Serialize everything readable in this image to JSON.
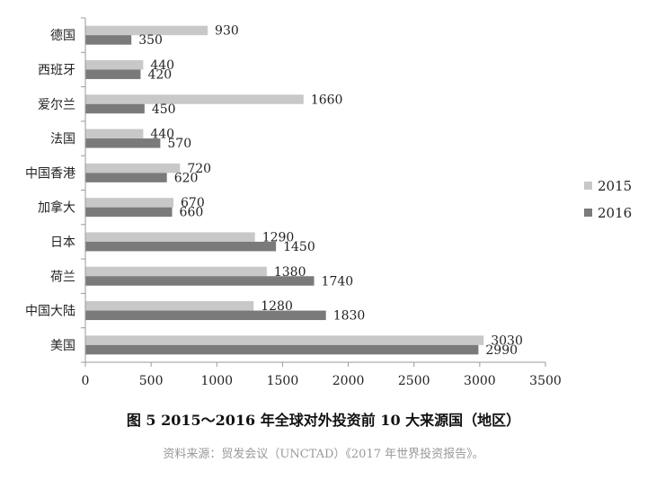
{
  "chart_data": {
    "type": "bar",
    "orientation": "horizontal",
    "categories": [
      "德国",
      "西班牙",
      "爱尔兰",
      "法国",
      "中国香港",
      "加拿大",
      "日本",
      "荷兰",
      "中国大陆",
      "美国"
    ],
    "series": [
      {
        "name": "2015",
        "color": "#c8c8c8",
        "values": [
          930,
          440,
          1660,
          440,
          720,
          670,
          1290,
          1380,
          1280,
          3030
        ]
      },
      {
        "name": "2016",
        "color": "#7a7a7a",
        "values": [
          350,
          420,
          450,
          570,
          620,
          660,
          1450,
          1740,
          1830,
          2990
        ]
      }
    ],
    "xlim": [
      0,
      3500
    ],
    "xticks": [
      0,
      500,
      1000,
      1500,
      2000,
      2500,
      3000,
      3500
    ],
    "grid": false,
    "legend": "right",
    "data_labels": true,
    "title": "图 5 2015～2016 年全球对外投资前 10 大来源国（地区）"
  },
  "source_note": "资料来源：贸发会议（UNCTAD）《2017 年世界投资报告》。"
}
